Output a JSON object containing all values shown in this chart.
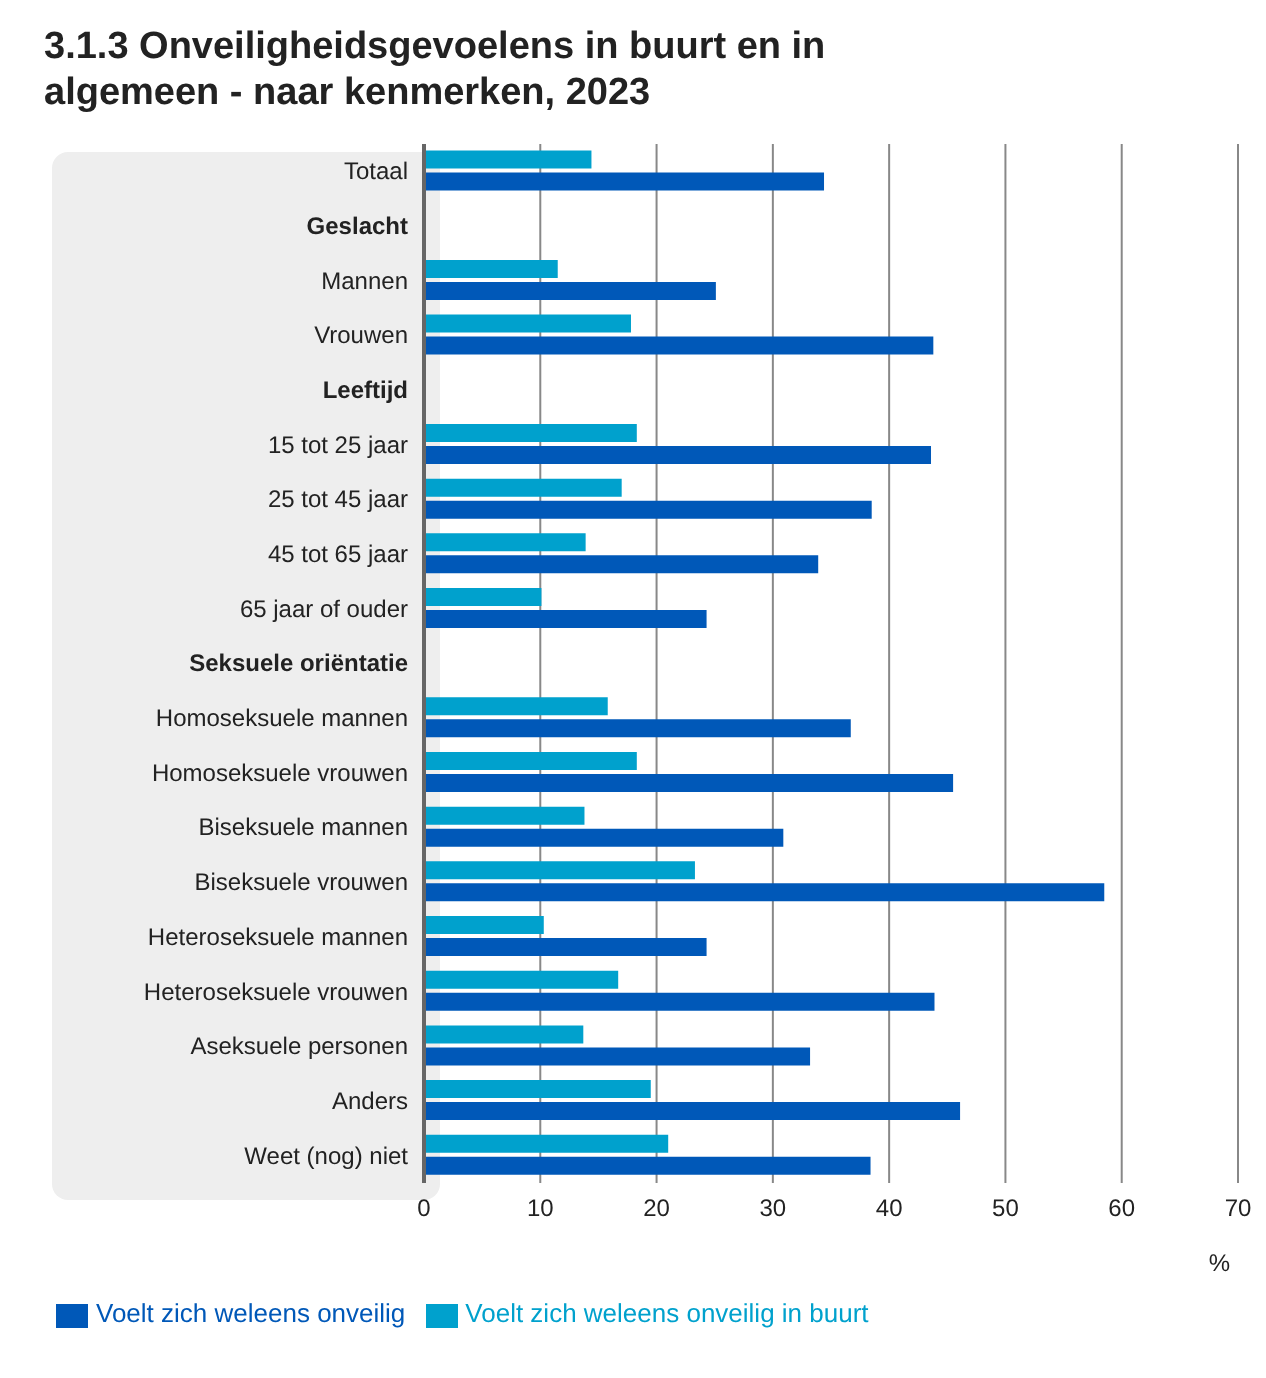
{
  "chart_data": {
    "type": "bar",
    "orientation": "horizontal",
    "title": "3.1.3 Onveiligheidsgevoelens in buurt en in algemeen - naar kenmerken, 2023",
    "xlabel": "%",
    "categories": [
      "Totaal",
      "Geslacht",
      "Mannen",
      "Vrouwen",
      "Leeftijd",
      "15 tot 25 jaar",
      "25 tot 45 jaar",
      "45 tot 65 jaar",
      "65 jaar of ouder",
      "Seksuele oriëntatie",
      "Homoseksuele mannen",
      "Homoseksuele vrouwen",
      "Biseksuele mannen",
      "Biseksuele vrouwen",
      "Heteroseksuele mannen",
      "Heteroseksuele vrouwen",
      "Aseksuele personen",
      "Anders",
      "Weet (nog) niet"
    ],
    "series": [
      {
        "name": "Voelt zich weleens onveilig in buurt",
        "color": "#00a1cd",
        "values": [
          14.4,
          null,
          11.5,
          17.8,
          null,
          18.3,
          17.0,
          13.9,
          10.1,
          null,
          15.8,
          18.3,
          13.8,
          23.3,
          10.3,
          16.7,
          13.7,
          19.5,
          21.0
        ]
      },
      {
        "name": "Voelt zich weleens onveilig",
        "color": "#0058b8",
        "values": [
          34.4,
          null,
          25.1,
          43.8,
          null,
          43.6,
          38.5,
          33.9,
          24.3,
          null,
          36.7,
          45.5,
          30.9,
          58.5,
          24.3,
          43.9,
          33.2,
          46.1,
          38.4
        ]
      }
    ],
    "xlim": [
      0,
      70
    ],
    "xticks": [
      0,
      10,
      20,
      30,
      40,
      50,
      60,
      70
    ],
    "grid": "x",
    "legend": "bottom"
  }
}
